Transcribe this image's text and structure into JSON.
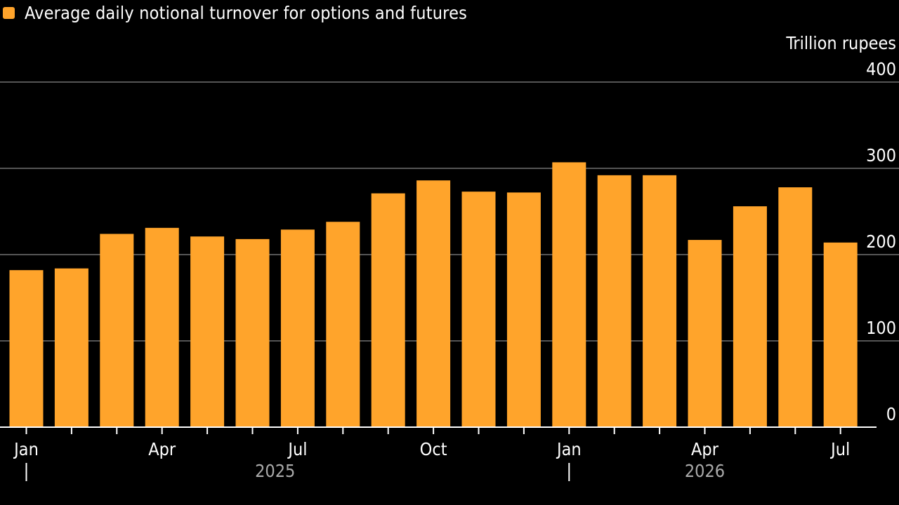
{
  "legend": {
    "label": "Average daily notional turnover for options and futures",
    "swatch_color": "#FFA42B"
  },
  "y_unit": "Trillion rupees",
  "colors": {
    "bar": "#FFA42B",
    "background": "#000000",
    "grid": "#555555",
    "baseline": "#ffffff",
    "text": "#ffffff",
    "year_text": "#aaaaaa"
  },
  "chart_data": {
    "type": "bar",
    "series": [
      {
        "name": "Average daily notional turnover for options and futures",
        "values": [
          182,
          184,
          224,
          231,
          221,
          218,
          229,
          238,
          271,
          286,
          273,
          272,
          307,
          292,
          292,
          217,
          256,
          278,
          214
        ]
      }
    ],
    "categories": [
      "2025-01",
      "2025-02",
      "2025-03",
      "2025-04",
      "2025-05",
      "2025-06",
      "2025-07",
      "2025-08",
      "2025-09",
      "2025-10",
      "2025-11",
      "2025-12",
      "2026-01",
      "2026-02",
      "2026-03",
      "2026-04",
      "2026-05",
      "2026-06",
      "2026-07"
    ],
    "ylim": [
      0,
      400
    ],
    "yticks": [
      "0",
      "100",
      "200",
      "300",
      "400"
    ],
    "x_tick_labels": [
      {
        "index": 0,
        "label": "Jan"
      },
      {
        "index": 3,
        "label": "Apr"
      },
      {
        "index": 6,
        "label": "Jul"
      },
      {
        "index": 9,
        "label": "Oct"
      },
      {
        "index": 12,
        "label": "Jan"
      },
      {
        "index": 15,
        "label": "Apr"
      },
      {
        "index": 18,
        "label": "Jul"
      }
    ],
    "year_labels": [
      {
        "label": "2025",
        "start_index": 0,
        "end_index": 11
      },
      {
        "label": "2026",
        "start_index": 12,
        "end_index": 18
      }
    ],
    "ylabel": "Trillion rupees",
    "grid": true,
    "y_axis_side": "right",
    "legend_position": "top-left"
  }
}
